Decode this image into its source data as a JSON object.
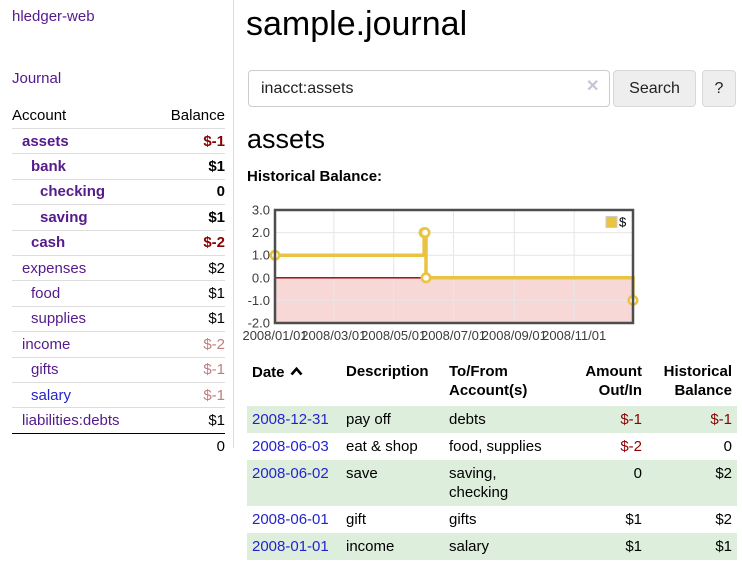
{
  "sidebar": {
    "brand": "hledger-web",
    "nav": {
      "journal": "Journal"
    },
    "accounts": {
      "col_account": "Account",
      "col_balance": "Balance",
      "rows": [
        {
          "name": "assets",
          "balance": "$-1"
        },
        {
          "name": "bank",
          "balance": "$1"
        },
        {
          "name": "checking",
          "balance": "0"
        },
        {
          "name": "saving",
          "balance": "$1"
        },
        {
          "name": "cash",
          "balance": "$-2"
        },
        {
          "name": "expenses",
          "balance": "$2"
        },
        {
          "name": "food",
          "balance": "$1"
        },
        {
          "name": "supplies",
          "balance": "$1"
        },
        {
          "name": "income",
          "balance": "$-2"
        },
        {
          "name": "gifts",
          "balance": "$-1"
        },
        {
          "name": "salary",
          "balance": "$-1"
        },
        {
          "name": "liabilities:debts",
          "balance": "$1"
        }
      ],
      "total": "0"
    }
  },
  "main": {
    "title": "sample.journal",
    "search": {
      "value": "inacct:assets",
      "clear_icon": "✕",
      "search_label": "Search",
      "help_label": "?"
    },
    "account": {
      "heading": "assets",
      "chart_title": "Historical Balance:"
    }
  },
  "chart_data": {
    "type": "line",
    "step": true,
    "title": "Historical Balance",
    "legend": {
      "position": "top-right",
      "entries": [
        {
          "label": "$",
          "color": "#e9c443"
        }
      ]
    },
    "x": {
      "min": "2008-01-01",
      "max": "2008-12-31",
      "ticks": [
        {
          "v": "2008-01-01",
          "label": "2008/01/01"
        },
        {
          "v": "2008-03-01",
          "label": "2008/03/01"
        },
        {
          "v": "2008-05-01",
          "label": "2008/05/01"
        },
        {
          "v": "2008-07-01",
          "label": "2008/07/01"
        },
        {
          "v": "2008-09-01",
          "label": "2008/09/01"
        },
        {
          "v": "2008-11-01",
          "label": "2008/11/01"
        }
      ]
    },
    "y": {
      "min": -2,
      "max": 3,
      "ticks": [
        "3.0",
        "2.0",
        "1.0",
        "0.0",
        "-1.0",
        "-2.0"
      ]
    },
    "series": [
      {
        "name": "$",
        "color": "#e9c443",
        "points": [
          [
            "2008-01-01",
            1
          ],
          [
            "2008-06-01",
            2
          ],
          [
            "2008-06-02",
            2
          ],
          [
            "2008-06-03",
            0
          ],
          [
            "2008-12-31",
            -1
          ]
        ]
      }
    ],
    "grid": {
      "color": "#e6e6e6",
      "border_color": "#4d4d4d"
    },
    "negative_region_color": "#f8d7d7",
    "zero_line_color": "#8b0000"
  },
  "register": {
    "columns": {
      "date": "Date",
      "description": "Description",
      "accounts": "To/From Account(s)",
      "amount": "Amount Out/In",
      "balance": "Historical Balance"
    },
    "rows": [
      {
        "date": "2008-12-31",
        "description": "pay off",
        "accounts": "debts",
        "amount": "$-1",
        "balance": "$-1"
      },
      {
        "date": "2008-06-03",
        "description": "eat & shop",
        "accounts": "food, supplies",
        "amount": "$-2",
        "balance": "0"
      },
      {
        "date": "2008-06-02",
        "description": "save",
        "accounts": "saving, checking",
        "amount": "0",
        "balance": "$2"
      },
      {
        "date": "2008-06-01",
        "description": "gift",
        "accounts": "gifts",
        "amount": "$1",
        "balance": "$2"
      },
      {
        "date": "2008-01-01",
        "description": "income",
        "accounts": "salary",
        "amount": "$1",
        "balance": "$1"
      }
    ]
  }
}
